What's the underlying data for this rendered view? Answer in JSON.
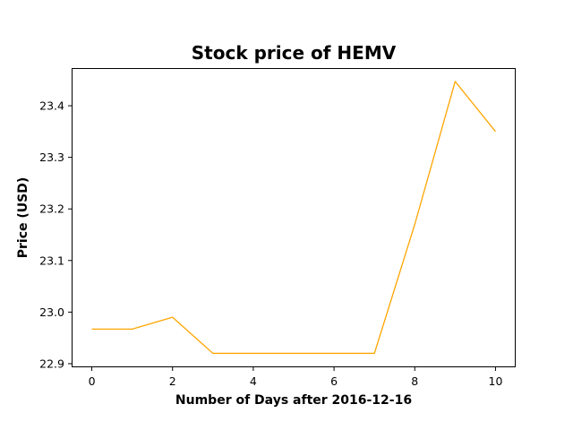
{
  "chart_data": {
    "type": "line",
    "title": "Stock price of HEMV",
    "xlabel": "Number of Days after 2016-12-16",
    "ylabel": "Price (USD)",
    "x": [
      0,
      1,
      2,
      3,
      4,
      5,
      6,
      7,
      8,
      9,
      10
    ],
    "series": [
      {
        "values": [
          22.967,
          22.967,
          22.99,
          22.92,
          22.92,
          22.92,
          22.92,
          22.92,
          23.17,
          23.447,
          23.35
        ],
        "color": "#ffa500"
      }
    ],
    "xlim": [
      -0.5,
      10.5
    ],
    "ylim": [
      22.893,
      23.473
    ],
    "xticks": [
      0,
      2,
      4,
      6,
      8,
      10
    ],
    "yticks": [
      22.9,
      23.0,
      23.1,
      23.2,
      23.3,
      23.4
    ],
    "xtick_labels": [
      "0",
      "2",
      "4",
      "6",
      "8",
      "10"
    ],
    "ytick_labels": [
      "22.9",
      "23.0",
      "23.1",
      "23.2",
      "23.3",
      "23.4"
    ],
    "grid": false,
    "legend": false
  }
}
